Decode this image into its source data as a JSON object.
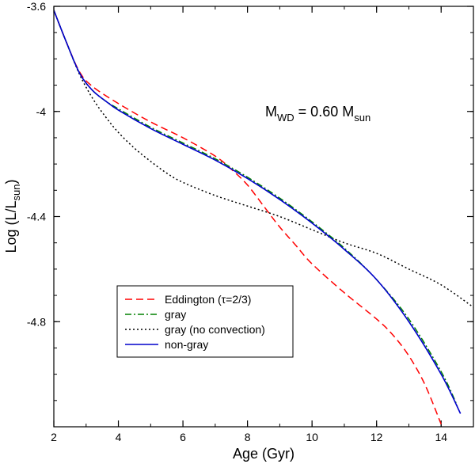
{
  "chart_data": {
    "type": "line",
    "xlabel": "Age (Gyr)",
    "ylabel": "Log (L/L_sun)",
    "ylabel_parts": {
      "main": "Log (L/L",
      "sub": "sun",
      "close": ")"
    },
    "xlim": [
      2,
      15
    ],
    "ylim": [
      -5.2,
      -3.6
    ],
    "x_major_ticks": [
      2,
      4,
      6,
      8,
      10,
      12,
      14
    ],
    "x_tick_labels": [
      "2",
      "4",
      "6",
      "8",
      "10",
      "12",
      "14"
    ],
    "x_minor_step": 1,
    "y_major_ticks": [
      -4.8,
      -4.4,
      -4.0,
      -3.6
    ],
    "y_tick_labels": [
      "-4.8",
      "-4.4",
      "-4",
      "-3.6"
    ],
    "y_minor_step": 0.1,
    "annotation": {
      "m": "M",
      "m_sub": "WD",
      "eq": " = 0.60 M",
      "sun_sub": "sun",
      "full": "MWD = 0.60 Msun"
    },
    "legend_position": "lower-left",
    "series": [
      {
        "name": "Eddington (τ=2/3)",
        "color": "#ff0000",
        "dash": "9,5",
        "x": [
          2.0,
          2.4,
          2.8,
          3.2,
          4.0,
          5.0,
          6.0,
          7.0,
          7.5,
          8.0,
          8.5,
          9.0,
          9.5,
          10.0,
          11.0,
          12.0,
          12.5,
          13.0,
          13.5,
          14.0
        ],
        "y": [
          -3.615,
          -3.74,
          -3.85,
          -3.905,
          -3.97,
          -4.04,
          -4.1,
          -4.17,
          -4.22,
          -4.28,
          -4.36,
          -4.44,
          -4.51,
          -4.58,
          -4.69,
          -4.79,
          -4.85,
          -4.93,
          -5.04,
          -5.19
        ]
      },
      {
        "name": "gray",
        "color": "#008000",
        "dash": "8,3,2,3",
        "x": [
          2.0,
          2.4,
          2.8,
          3.2,
          3.6,
          4.0,
          5.0,
          6.0,
          7.0,
          8.0,
          9.0,
          10.0,
          11.0,
          12.0,
          13.0,
          14.0,
          14.5
        ],
        "y": [
          -3.615,
          -3.74,
          -3.855,
          -3.92,
          -3.96,
          -3.99,
          -4.06,
          -4.12,
          -4.18,
          -4.25,
          -4.33,
          -4.42,
          -4.52,
          -4.64,
          -4.79,
          -4.99,
          -5.12
        ]
      },
      {
        "name": "gray (no convection)",
        "color": "#000000",
        "dash": "2,3",
        "x": [
          2.0,
          2.4,
          2.8,
          3.2,
          3.6,
          4.0,
          4.5,
          5.0,
          5.5,
          6.0,
          7.0,
          8.0,
          9.0,
          10.0,
          11.0,
          12.0,
          13.0,
          14.0,
          15.0
        ],
        "y": [
          -3.615,
          -3.74,
          -3.86,
          -3.95,
          -4.02,
          -4.08,
          -4.14,
          -4.19,
          -4.235,
          -4.27,
          -4.32,
          -4.36,
          -4.4,
          -4.45,
          -4.5,
          -4.54,
          -4.6,
          -4.66,
          -4.745
        ]
      },
      {
        "name": "non-gray",
        "color": "#0000cc",
        "dash": "",
        "x": [
          2.0,
          2.4,
          2.8,
          3.2,
          3.6,
          4.0,
          5.0,
          6.0,
          7.0,
          8.0,
          9.0,
          10.0,
          11.0,
          12.0,
          13.0,
          14.0,
          14.6
        ],
        "y": [
          -3.615,
          -3.74,
          -3.855,
          -3.92,
          -3.96,
          -3.995,
          -4.065,
          -4.125,
          -4.185,
          -4.255,
          -4.335,
          -4.425,
          -4.525,
          -4.64,
          -4.8,
          -5.0,
          -5.15
        ]
      }
    ]
  }
}
